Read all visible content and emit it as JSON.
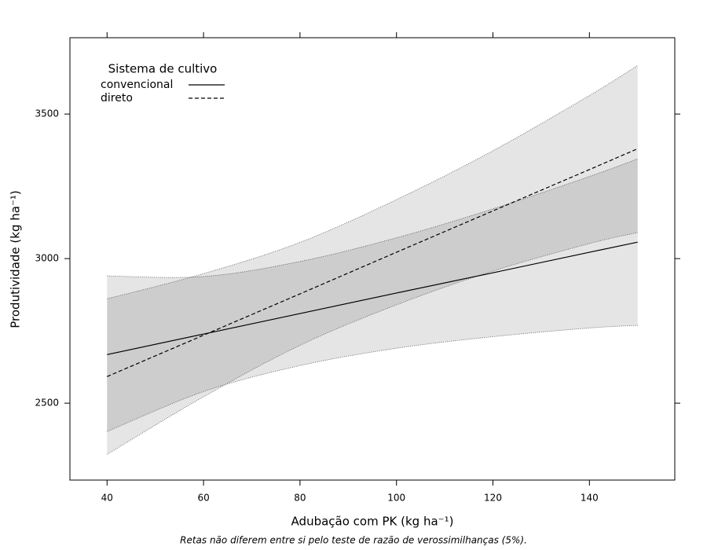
{
  "chart_data": {
    "type": "line-band",
    "x_label": "Adubação com PK (kg ha⁻¹)",
    "y_label": "Produtividade (kg ha⁻¹)",
    "footnote": "Retas não diferem entre si pelo teste de razão de verossimilhanças (5%).",
    "legend_title": "Sistema de cultivo",
    "legend_position": "top-left",
    "x": [
      40,
      60,
      80,
      100,
      120,
      140,
      150
    ],
    "series": [
      {
        "name": "convencional",
        "color": "#000000",
        "line_style": "solid",
        "values": [
          2668,
          2739,
          2810,
          2881,
          2951,
          3022,
          3057
        ],
        "upper": [
          2940,
          2938,
          2990,
          3072,
          3172,
          3284,
          3345
        ],
        "lower": [
          2402,
          2540,
          2630,
          2690,
          2730,
          2760,
          2769
        ]
      },
      {
        "name": "direto",
        "color": "#000000",
        "line_style": "dashed",
        "values": [
          2592,
          2735,
          2878,
          3022,
          3165,
          3308,
          3380
        ],
        "upper": [
          2861,
          2948,
          3056,
          3204,
          3373,
          3564,
          3668
        ],
        "lower": [
          2323,
          2522,
          2700,
          2840,
          2957,
          3052,
          3090
        ]
      }
    ],
    "band_color": "#000000",
    "xlim": [
      32.3,
      157.7
    ],
    "ylim": [
      2234,
      3764
    ],
    "xticks": [
      40,
      60,
      80,
      100,
      120,
      140
    ],
    "yticks": [
      2500,
      3000,
      3500
    ]
  }
}
